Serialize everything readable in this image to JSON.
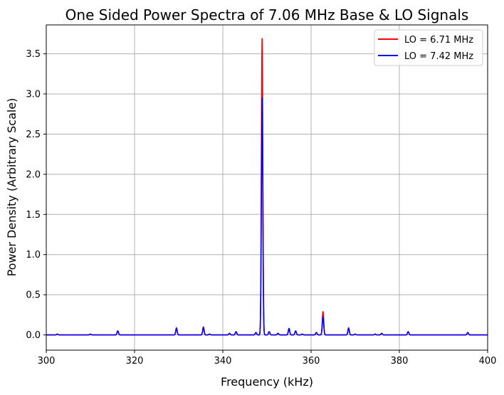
{
  "chart_data": {
    "type": "line",
    "title": "One Sided Power Spectra of 7.06 MHz Base & LO Signals",
    "xlabel": "Frequency (kHz)",
    "ylabel": "Power Density (Arbitrary Scale)",
    "xlim": [
      300,
      400
    ],
    "ylim": [
      -0.19,
      3.86
    ],
    "xticks": [
      300,
      320,
      340,
      360,
      380,
      400
    ],
    "yticks": [
      0.0,
      0.5,
      1.0,
      1.5,
      2.0,
      2.5,
      3.0,
      3.5
    ],
    "xtick_labels": [
      "300",
      "320",
      "340",
      "360",
      "380",
      "400"
    ],
    "ytick_labels": [
      "0.0",
      "0.5",
      "1.0",
      "1.5",
      "2.0",
      "2.5",
      "3.0",
      "3.5"
    ],
    "grid": true,
    "legend_position": "top-right",
    "baseline": 0.0,
    "series": [
      {
        "name": "LO = 6.71 MHz",
        "color": "#ff0000",
        "peaks": [
          {
            "x": 302.5,
            "y": 0.01
          },
          {
            "x": 310.0,
            "y": 0.01
          },
          {
            "x": 316.2,
            "y": 0.05
          },
          {
            "x": 329.5,
            "y": 0.09
          },
          {
            "x": 335.6,
            "y": 0.1
          },
          {
            "x": 337.0,
            "y": 0.01
          },
          {
            "x": 341.5,
            "y": 0.02
          },
          {
            "x": 343.0,
            "y": 0.04
          },
          {
            "x": 347.5,
            "y": 0.03
          },
          {
            "x": 348.9,
            "y": 3.69
          },
          {
            "x": 350.5,
            "y": 0.04
          },
          {
            "x": 352.5,
            "y": 0.02
          },
          {
            "x": 355.0,
            "y": 0.08
          },
          {
            "x": 356.5,
            "y": 0.05
          },
          {
            "x": 358.0,
            "y": 0.01
          },
          {
            "x": 361.2,
            "y": 0.03
          },
          {
            "x": 362.7,
            "y": 0.29
          },
          {
            "x": 368.5,
            "y": 0.09
          },
          {
            "x": 370.0,
            "y": 0.01
          },
          {
            "x": 374.5,
            "y": 0.01
          },
          {
            "x": 376.0,
            "y": 0.02
          },
          {
            "x": 382.0,
            "y": 0.04
          },
          {
            "x": 395.5,
            "y": 0.03
          }
        ]
      },
      {
        "name": "LO = 7.42 MHz",
        "color": "#0000ff",
        "peaks": [
          {
            "x": 302.5,
            "y": 0.01
          },
          {
            "x": 310.0,
            "y": 0.01
          },
          {
            "x": 316.2,
            "y": 0.05
          },
          {
            "x": 329.5,
            "y": 0.08
          },
          {
            "x": 335.6,
            "y": 0.09
          },
          {
            "x": 337.0,
            "y": 0.01
          },
          {
            "x": 341.5,
            "y": 0.02
          },
          {
            "x": 343.0,
            "y": 0.04
          },
          {
            "x": 347.5,
            "y": 0.03
          },
          {
            "x": 348.9,
            "y": 2.95
          },
          {
            "x": 350.5,
            "y": 0.04
          },
          {
            "x": 352.5,
            "y": 0.02
          },
          {
            "x": 355.0,
            "y": 0.08
          },
          {
            "x": 356.5,
            "y": 0.05
          },
          {
            "x": 358.0,
            "y": 0.01
          },
          {
            "x": 361.2,
            "y": 0.03
          },
          {
            "x": 362.7,
            "y": 0.23
          },
          {
            "x": 368.5,
            "y": 0.08
          },
          {
            "x": 370.0,
            "y": 0.01
          },
          {
            "x": 374.5,
            "y": 0.01
          },
          {
            "x": 376.0,
            "y": 0.02
          },
          {
            "x": 382.0,
            "y": 0.04
          },
          {
            "x": 395.5,
            "y": 0.03
          }
        ]
      }
    ]
  },
  "colors": {
    "grid": "#b0b0b0",
    "axis": "#000000",
    "legend_border": "#cccccc"
  }
}
